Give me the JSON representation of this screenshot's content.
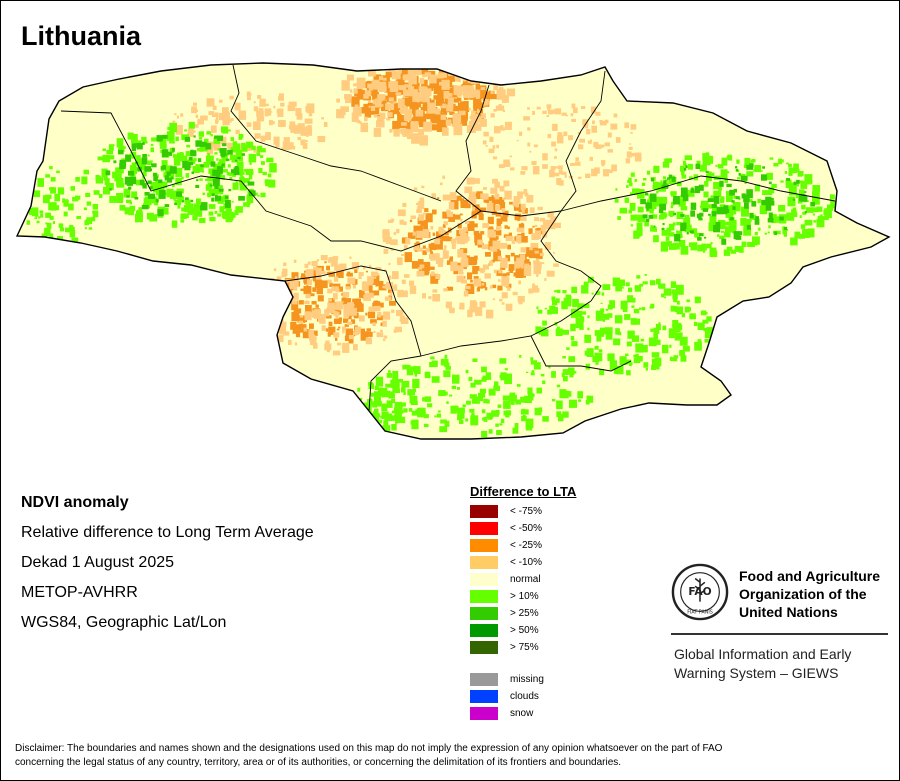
{
  "map": {
    "title": "Lithuania",
    "colors": {
      "normal": "#FFFFC8",
      "negative_10": "#FFCC80",
      "negative_25": "#F5941E",
      "positive_10": "#66FF00",
      "positive_25": "#33CC00",
      "border": "#000000"
    }
  },
  "info": {
    "product": "NDVI anomaly",
    "description": "Relative difference to Long Term Average",
    "period": "Dekad 1 August 2025",
    "sensor": "METOP-AVHRR",
    "projection": "WGS84, Geographic Lat/Lon"
  },
  "legend": {
    "title": "Difference to LTA",
    "classes": [
      {
        "label": "< -75%",
        "color": "#990000"
      },
      {
        "label": "< -50%",
        "color": "#FF0000"
      },
      {
        "label": "< -25%",
        "color": "#FF8C00"
      },
      {
        "label": "< -10%",
        "color": "#FFCC66"
      },
      {
        "label": "normal",
        "color": "#FFFFCC"
      },
      {
        "label": "> 10%",
        "color": "#66FF00"
      },
      {
        "label": "> 25%",
        "color": "#33CC00"
      },
      {
        "label": "> 50%",
        "color": "#009900"
      },
      {
        "label": "> 75%",
        "color": "#336600"
      }
    ],
    "extra": [
      {
        "label": "missing",
        "color": "#999999"
      },
      {
        "label": "clouds",
        "color": "#0040FF"
      },
      {
        "label": "snow",
        "color": "#CC00CC"
      }
    ]
  },
  "fao": {
    "logo_text": "FAO",
    "logo_motto": "FIAT PANIS",
    "name_line1": "Food and Agriculture",
    "name_line2": "Organization of the",
    "name_line3": "United Nations",
    "giews_line1": "Global Information and Early",
    "giews_line2": "Warning System – GIEWS"
  },
  "disclaimer": {
    "line1": "Disclaimer: The boundaries and names shown and the designations used on this map do not imply the expression of any opinion whatsoever on the part of FAO",
    "line2": "concerning the legal status of any country, territory, area or of its authorities, or concerning the delimitation of its frontiers and boundaries."
  }
}
